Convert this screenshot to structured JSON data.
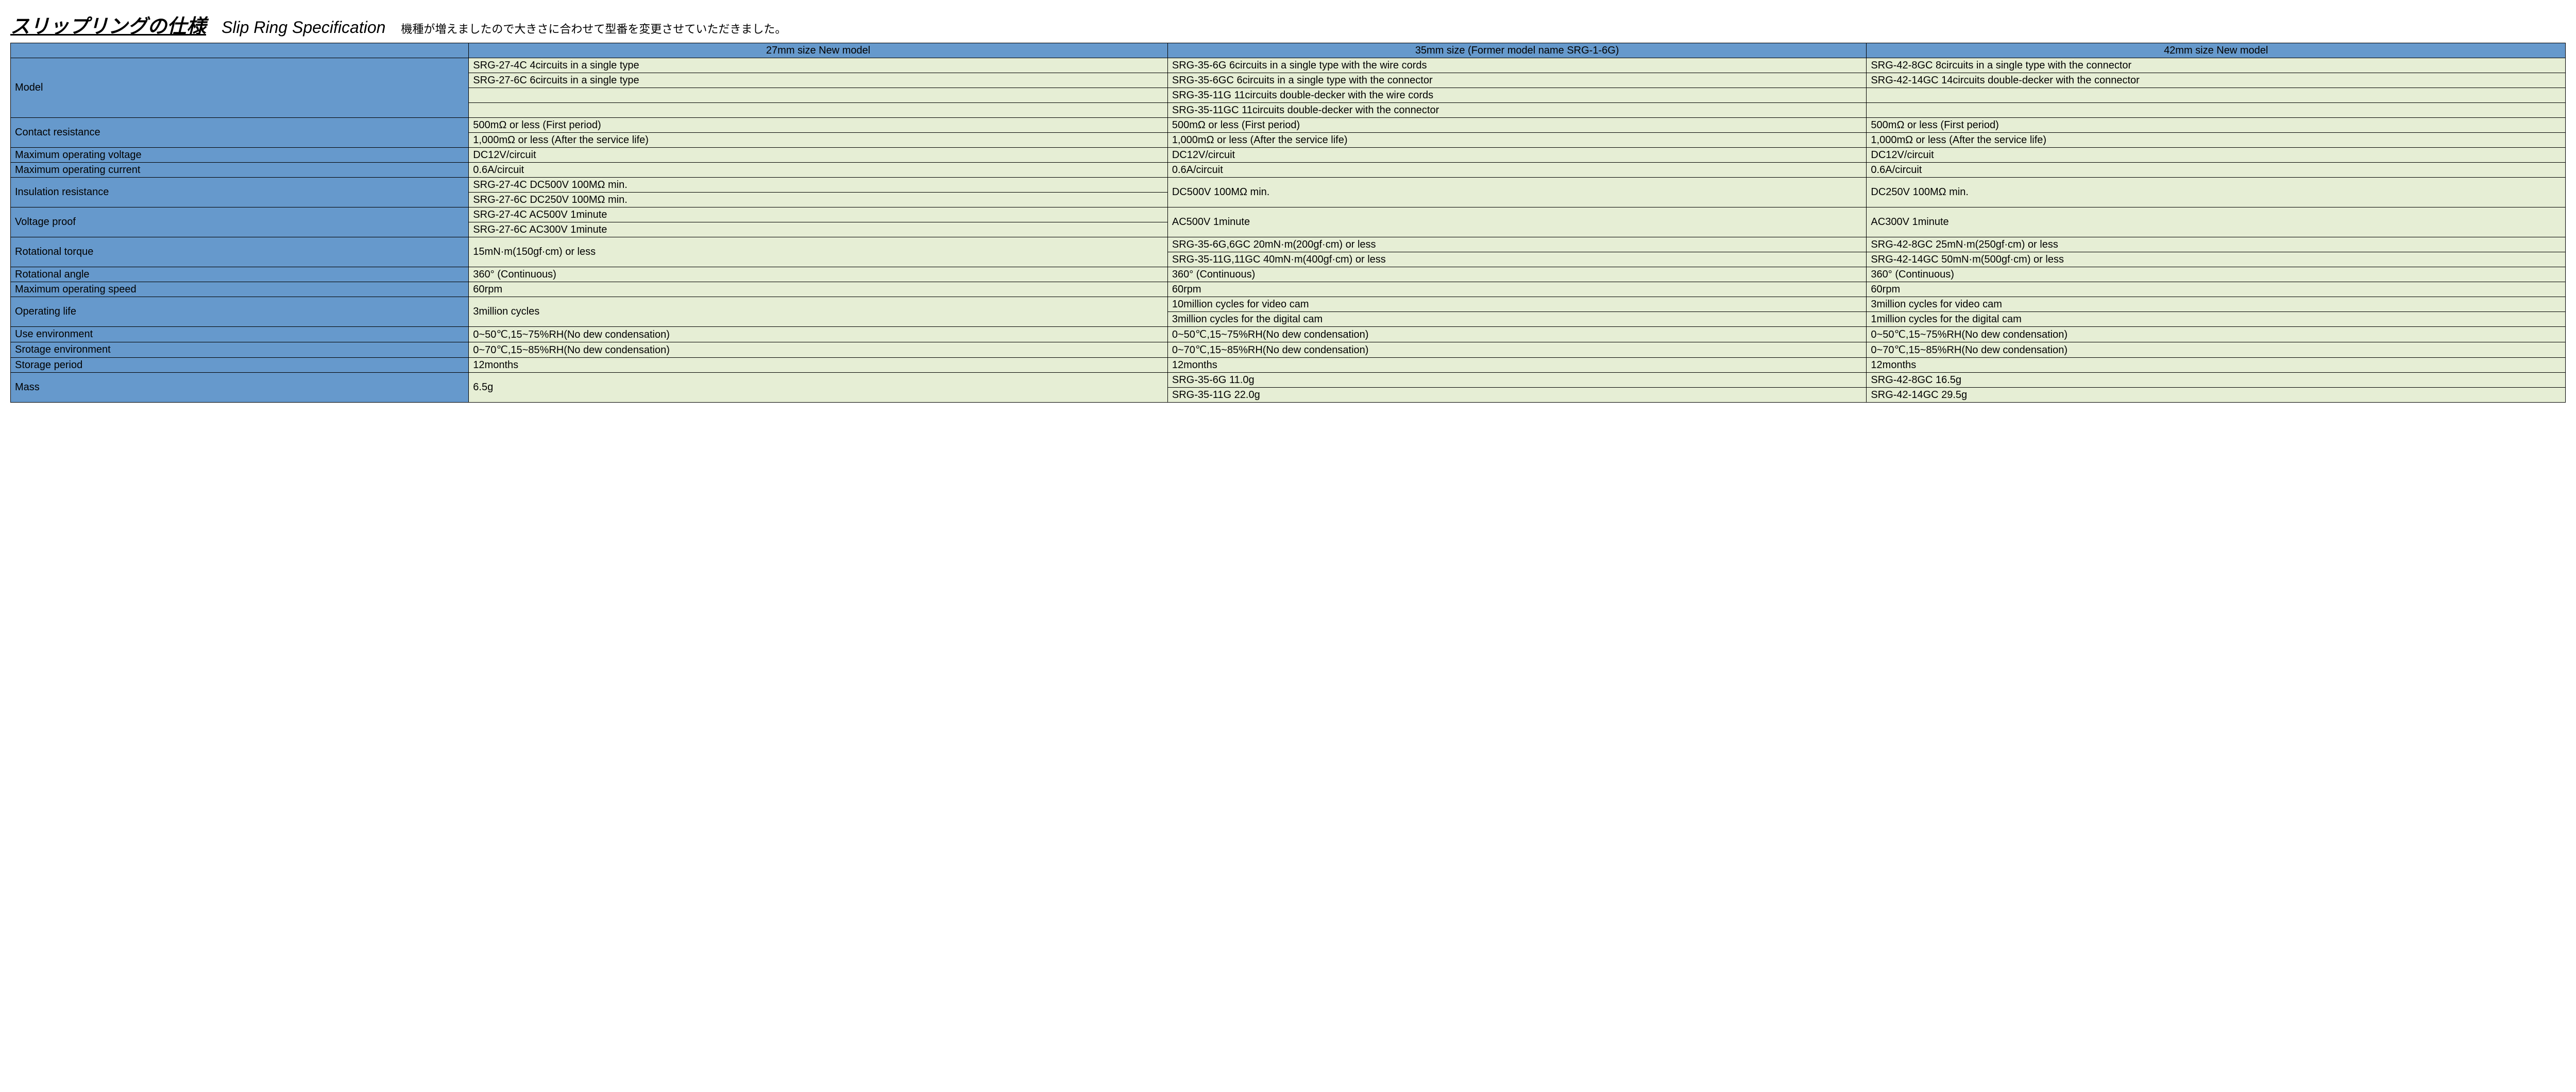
{
  "title_jp": "スリップリングの仕様",
  "title_en": "Slip Ring Specification",
  "subtitle": "機種が増えましたので大きさに合わせて型番を変更させていただきました。",
  "headers": {
    "c1": "27mm size New model",
    "c2": "35mm size (Former model name SRG-1-6G)",
    "c3": "42mm size New model"
  },
  "rows": {
    "model_label": "Model",
    "model_a1": "SRG-27-4C 4circuits in a single type",
    "model_a2": "SRG-27-6C 6circuits in a single type",
    "model_a3": "",
    "model_a4": "",
    "model_b1": "SRG-35-6G 6circuits in a single type with the wire cords",
    "model_b2": "SRG-35-6GC 6circuits in a single type with the connector",
    "model_b3": "SRG-35-11G 11circuits double-decker with the wire cords",
    "model_b4": "SRG-35-11GC 11circuits double-decker with the connector",
    "model_c1": "SRG-42-8GC 8circuits in a single type with the connector",
    "model_c2": "SRG-42-14GC 14circuits double-decker with the connector",
    "model_c3": "",
    "model_c4": "",
    "contact_label": "Contact resistance",
    "contact_a1": "500mΩ or less (First period)",
    "contact_a2": "1,000mΩ or less (After the service life)",
    "contact_b1": "500mΩ or less (First period)",
    "contact_b2": "1,000mΩ or less (After the service life)",
    "contact_c1": "500mΩ or less (First period)",
    "contact_c2": "1,000mΩ or less (After the service life)",
    "maxv_label": "Maximum operating voltage",
    "maxv_a": "DC12V/circuit",
    "maxv_b": "DC12V/circuit",
    "maxv_c": "DC12V/circuit",
    "maxi_label": "Maximum operating current",
    "maxi_a": "0.6A/circuit",
    "maxi_b": "0.6A/circuit",
    "maxi_c": "0.6A/circuit",
    "insul_label": "Insulation resistance",
    "insul_a1": "SRG-27-4C DC500V 100MΩ min.",
    "insul_a2": "SRG-27-6C DC250V 100MΩ min.",
    "insul_b": "DC500V 100MΩ min.",
    "insul_c": "DC250V 100MΩ min.",
    "vproof_label": "Voltage proof",
    "vproof_a1": "SRG-27-4C AC500V 1minute",
    "vproof_a2": "SRG-27-6C AC300V 1minute",
    "vproof_b": "AC500V 1minute",
    "vproof_c": "AC300V 1minute",
    "torque_label": "Rotational torque",
    "torque_a": "15mN·m(150gf·cm) or less",
    "torque_b1": "SRG-35-6G,6GC 20mN·m(200gf·cm) or less",
    "torque_b2": "SRG-35-11G,11GC 40mN·m(400gf·cm) or less",
    "torque_c1": "SRG-42-8GC 25mN·m(250gf·cm) or less",
    "torque_c2": "SRG-42-14GC 50mN·m(500gf·cm) or less",
    "angle_label": "Rotational angle",
    "angle_a": "360° (Continuous)",
    "angle_b": "360° (Continuous)",
    "angle_c": "360° (Continuous)",
    "speed_label": "Maximum operating speed",
    "speed_a": "60rpm",
    "speed_b": "60rpm",
    "speed_c": "60rpm",
    "life_label": "Operating life",
    "life_a": "3million cycles",
    "life_b1": "10million cycles for video cam",
    "life_b2": "3million cycles for the digital cam",
    "life_c1": "3million cycles for video cam",
    "life_c2": "1million cycles for the digital cam",
    "useenv_label": "Use environment",
    "useenv_a": "0~50℃,15~75%RH(No dew condensation)",
    "useenv_b": "0~50℃,15~75%RH(No dew condensation)",
    "useenv_c": "0~50℃,15~75%RH(No dew condensation)",
    "storenv_label": "Srotage environment",
    "storenv_a": "0~70℃,15~85%RH(No dew condensation)",
    "storenv_b": "0~70℃,15~85%RH(No dew condensation)",
    "storenv_c": "0~70℃,15~85%RH(No dew condensation)",
    "storper_label": "Storage period",
    "storper_a": "12months",
    "storper_b": "12months",
    "storper_c": "12months",
    "mass_label": "Mass",
    "mass_a": "6.5g",
    "mass_b1": "SRG-35-6G 11.0g",
    "mass_b2": "SRG-35-11G 22.0g",
    "mass_c1": "SRG-42-8GC 16.5g",
    "mass_c2": "SRG-42-14GC 29.5g"
  }
}
